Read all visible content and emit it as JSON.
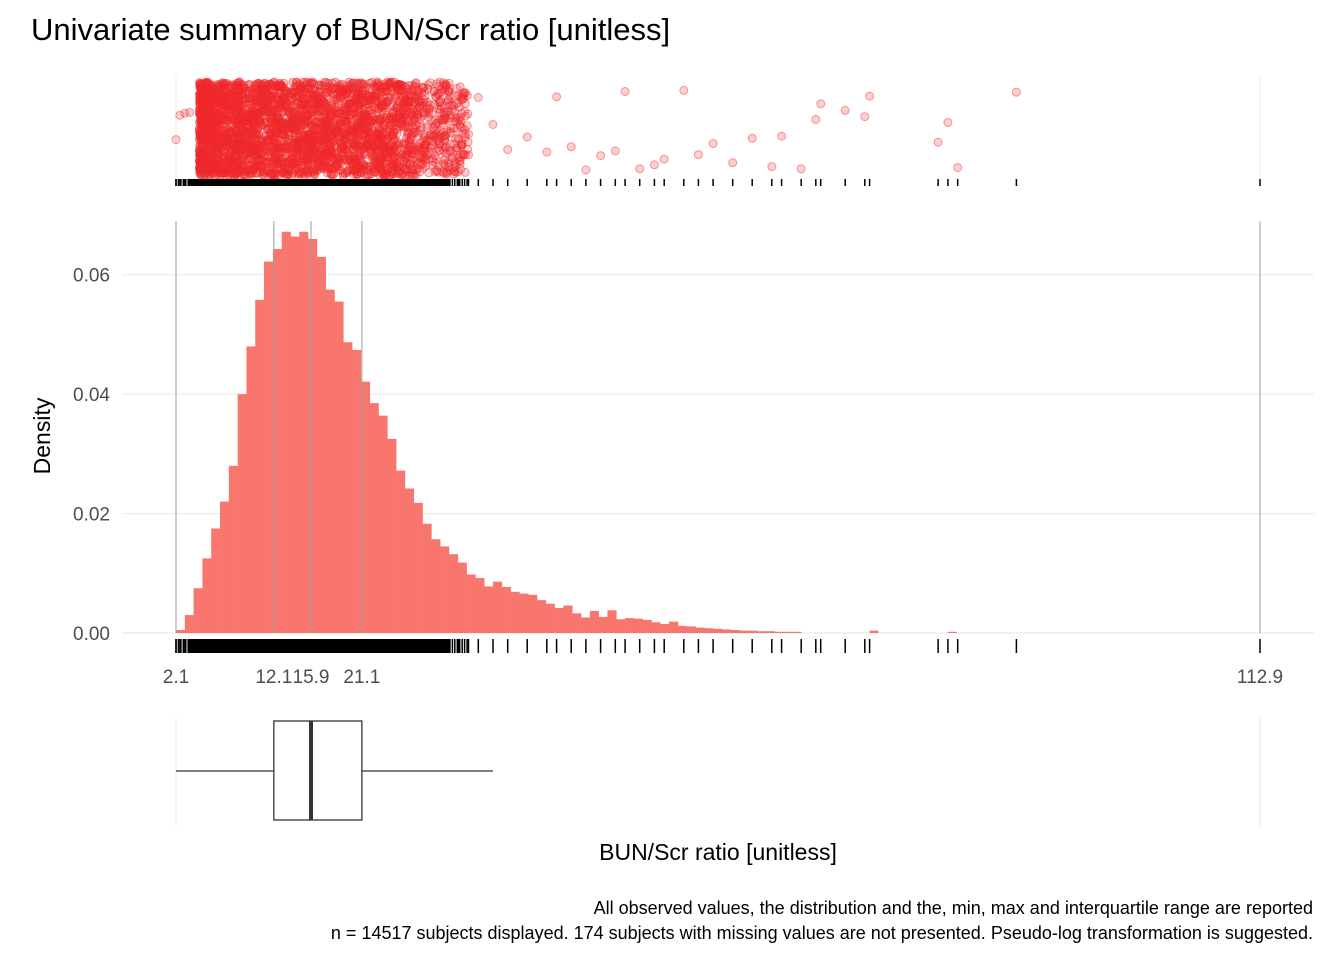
{
  "title": "Univariate summary of BUN/Scr ratio [unitless]",
  "caption": {
    "line1": "All observed values, the distribution and the, min, max and interquartile range are reported",
    "line2": "n = 14517 subjects displayed. 174 subjects with missing values are not presented. Pseudo-log transformation is suggested."
  },
  "colors": {
    "fill": "#F8766D",
    "points": "#F0292C",
    "grid": "#EBEBEB",
    "refline": "#B3B3B3"
  },
  "chart_data": [
    {
      "type": "scatter",
      "panel": "jittered observed values",
      "x_range": [
        2.1,
        112.9
      ],
      "dense_range": [
        4.5,
        26
      ],
      "sparse_points": [
        2.1,
        2.5,
        3,
        3.5,
        29.1,
        30,
        31,
        32,
        33,
        34.5,
        36,
        38,
        40,
        41,
        42.5,
        44,
        45.5,
        47,
        48,
        49.5,
        51,
        52,
        54,
        55.5,
        57,
        59,
        61,
        63,
        64,
        66,
        67.5,
        68,
        70.5,
        72.5,
        73,
        80,
        81,
        82,
        88
      ]
    },
    {
      "type": "bar",
      "panel": "histogram",
      "xlabel": "BUN/Scr ratio [unitless]",
      "ylabel": "Density",
      "x_range": [
        2.1,
        112.9
      ],
      "bin_start": 2.1,
      "bin_width": 0.9,
      "values": [
        0.0005,
        0.003,
        0.0075,
        0.0125,
        0.0175,
        0.022,
        0.028,
        0.04,
        0.048,
        0.0558,
        0.0622,
        0.0643,
        0.0672,
        0.0664,
        0.0672,
        0.066,
        0.063,
        0.0575,
        0.0555,
        0.0487,
        0.0474,
        0.0421,
        0.0385,
        0.0364,
        0.0325,
        0.0272,
        0.0242,
        0.0218,
        0.0183,
        0.0157,
        0.0145,
        0.0132,
        0.0118,
        0.0098,
        0.0092,
        0.0078,
        0.0086,
        0.0077,
        0.0069,
        0.0066,
        0.0064,
        0.0055,
        0.0049,
        0.0042,
        0.0046,
        0.0033,
        0.0026,
        0.0037,
        0.0027,
        0.0038,
        0.0023,
        0.0025,
        0.0024,
        0.0022,
        0.0018,
        0.0015,
        0.0019,
        0.0012,
        0.0011,
        0.0009,
        0.0008,
        0.0007,
        0.0006,
        0.0005,
        0.0004,
        0.0004,
        0.0003,
        0.0003,
        0.0002,
        0.0002,
        0.0002
      ],
      "sparse_bars": [
        {
          "x": 73,
          "value": 0.0004
        },
        {
          "x": 81,
          "value": 0.0002
        }
      ],
      "y_ticks": [
        "0.00",
        "0.02",
        "0.04",
        "0.06"
      ],
      "y_tick_values": [
        0,
        0.02,
        0.04,
        0.06
      ],
      "ylim": [
        0,
        0.069
      ],
      "x_ticks": [
        "2.1",
        "12.1",
        "15.9",
        "21.1",
        "112.9"
      ],
      "x_tick_values": [
        2.1,
        12.1,
        15.9,
        21.1,
        112.9
      ],
      "reference_lines": [
        2.1,
        12.1,
        15.9,
        21.1,
        112.9
      ]
    },
    {
      "type": "box",
      "panel": "boxplot",
      "min": 2.1,
      "q1": 12.1,
      "median": 15.9,
      "q3": 21.1,
      "whisker_high": 34.5,
      "max": 112.9
    }
  ]
}
